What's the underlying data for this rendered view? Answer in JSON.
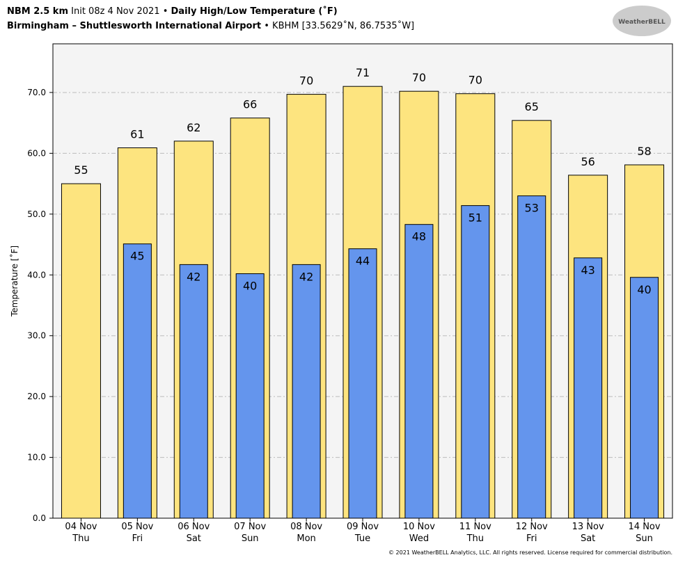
{
  "chart_data": {
    "type": "bar",
    "title_parts": [
      "NBM 2.5 km",
      "Init 08z 4 Nov 2021",
      "•",
      "Daily High/Low Temperature (˚F)"
    ],
    "subtitle_parts": [
      "Birmingham – Shuttlesworth International Airport",
      "•",
      "KBHM [33.5629˚N, 86.7535˚W]"
    ],
    "logo": "WeatherBELL",
    "footer": "© 2021 WeatherBELL Analytics, LLC. All rights reserved. License required for commercial distribution.",
    "y_label": "Temperature [˚F]",
    "categories": [
      "04 Nov",
      "05 Nov",
      "06 Nov",
      "07 Nov",
      "08 Nov",
      "09 Nov",
      "10 Nov",
      "11 Nov",
      "12 Nov",
      "13 Nov",
      "14 Nov"
    ],
    "weekdays": [
      "Thu",
      "Fri",
      "Sat",
      "Sun",
      "Mon",
      "Tue",
      "Wed",
      "Thu",
      "Fri",
      "Sat",
      "Sun"
    ],
    "series": [
      {
        "color": "#fde47f",
        "values": [
          55.0,
          60.9,
          62.0,
          65.8,
          69.7,
          71.0,
          70.2,
          69.8,
          65.4,
          56.4,
          58.1
        ],
        "value_labels": [
          "55",
          "61",
          "62",
          "66",
          "70",
          "71",
          "70",
          "70",
          "65",
          "56",
          "58"
        ]
      },
      {
        "color": "#6495ed",
        "values": [
          null,
          45.1,
          41.7,
          40.2,
          41.7,
          44.3,
          48.3,
          51.4,
          53.0,
          42.8,
          39.6
        ],
        "value_labels": [
          null,
          "45",
          "42",
          "40",
          "42",
          "44",
          "48",
          "51",
          "53",
          "43",
          "40"
        ]
      }
    ],
    "ylim": [
      0,
      78
    ],
    "yticks": [
      {
        "value": 0,
        "label": "0.0"
      },
      {
        "value": 10,
        "label": "10.0"
      },
      {
        "value": 20,
        "label": "20.0"
      },
      {
        "value": 30,
        "label": "30.0"
      },
      {
        "value": 40,
        "label": "40.0"
      },
      {
        "value": 50,
        "label": "50.0"
      },
      {
        "value": 60,
        "label": "60.0"
      },
      {
        "value": 70,
        "label": "70.0"
      }
    ],
    "grid": true
  }
}
